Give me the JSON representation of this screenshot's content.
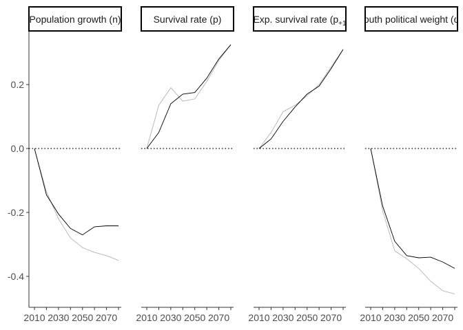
{
  "chart_data": {
    "type": "line",
    "x": [
      2010,
      2020,
      2030,
      2040,
      2050,
      2060,
      2070,
      2080
    ],
    "x_ticks": [
      2010,
      2030,
      2050,
      2070
    ],
    "x_tick_labels": [
      "2010",
      "2030",
      "2050",
      "2070"
    ],
    "y_ticks": [
      0.2,
      0.0,
      -0.2,
      -0.4
    ],
    "y_tick_labels": [
      "0.2",
      "0.0",
      "-0.2",
      "-0.4"
    ],
    "ylim": [
      -0.49,
      0.37
    ],
    "xlim": [
      2010,
      2080
    ],
    "reference_line": 0,
    "grid": false,
    "colors": {
      "black_series": "#000000",
      "grey_series": "#b3b3b3"
    },
    "panels": [
      {
        "title": "Population growth (n)",
        "series": [
          {
            "color": "#000000",
            "values": [
              0.0,
              -0.145,
              -0.205,
              -0.25,
              -0.27,
              -0.245,
              -0.242,
              -0.242
            ]
          },
          {
            "color": "#b3b3b3",
            "values": [
              0.0,
              -0.135,
              -0.22,
              -0.28,
              -0.31,
              -0.325,
              -0.335,
              -0.35
            ]
          }
        ]
      },
      {
        "title": "Survival rate (p)",
        "series": [
          {
            "color": "#000000",
            "values": [
              0.0,
              0.05,
              0.14,
              0.17,
              0.175,
              0.22,
              0.28,
              0.325
            ]
          },
          {
            "color": "#b3b3b3",
            "values": [
              0.0,
              0.135,
              0.19,
              0.148,
              0.155,
              0.21,
              0.275,
              0.325
            ]
          }
        ]
      },
      {
        "title_main": "Exp. survival rate (p",
        "title_sub": "+1",
        "series": [
          {
            "color": "#000000",
            "values": [
              0.0,
              0.03,
              0.085,
              0.13,
              0.17,
              0.195,
              0.25,
              0.31
            ]
          },
          {
            "color": "#b3b3b3",
            "values": [
              0.0,
              0.05,
              0.115,
              0.135,
              0.165,
              0.2,
              0.255,
              0.31
            ]
          }
        ]
      },
      {
        "title": "Youth political weight (ω)",
        "series": [
          {
            "color": "#000000",
            "values": [
              0.0,
              -0.18,
              -0.29,
              -0.335,
              -0.342,
              -0.34,
              -0.355,
              -0.375
            ]
          },
          {
            "color": "#b3b3b3",
            "values": [
              0.0,
              -0.195,
              -0.32,
              -0.345,
              -0.375,
              -0.415,
              -0.445,
              -0.455
            ]
          }
        ]
      }
    ]
  }
}
